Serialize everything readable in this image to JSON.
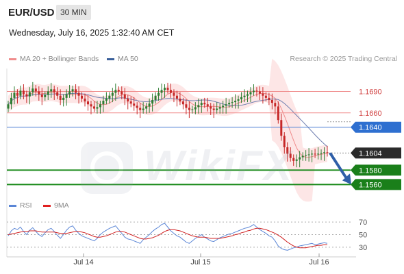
{
  "header": {
    "symbol": "EUR/USD",
    "timeframe": "30 MIN",
    "datetime": "Wednesday, July 16, 2025 1:32:40 AM CET"
  },
  "legend_top": {
    "items": [
      {
        "label": "MA 20 + Bollinger Bands",
        "color": "#f08c8c"
      },
      {
        "label": "MA 50",
        "color": "#3a5f9a"
      }
    ],
    "credit": "Research © 2025 Trading Central"
  },
  "legend_bottom": {
    "items": [
      {
        "label": "RSI",
        "color": "#5b86d6"
      },
      {
        "label": "9MA",
        "color": "#e02020"
      }
    ]
  },
  "watermark": {
    "text": "WikiFX"
  },
  "colors": {
    "candle_up": "#2e7d32",
    "candle_down": "#c62828",
    "bollinger_fill": "#fde2e2",
    "ma20_line": "#f08c8c",
    "ma50_line": "#6f7fb0",
    "resistance": "#f08c8c",
    "pivot": "#4a7fd4",
    "support": "#1a8a1a",
    "current": "#333333",
    "arrow": "#2f5fa8",
    "rsi": "#5b86d6",
    "rsi_ma": "#d02020"
  },
  "chart_data": [
    {
      "type": "candlestick",
      "title": "EUR/USD",
      "x_labels": [
        "Jul 14",
        "Jul 15",
        "Jul 16"
      ],
      "y_range": [
        1.1545,
        1.1722
      ],
      "levels": [
        {
          "label": "1.1690",
          "value": 1.169,
          "kind": "resistance"
        },
        {
          "label": "1.1660",
          "value": 1.166,
          "kind": "resistance"
        },
        {
          "label": "1.1640",
          "value": 1.164,
          "kind": "pivot"
        },
        {
          "label": "1.1604",
          "value": 1.1604,
          "kind": "current"
        },
        {
          "label": "1.1580",
          "value": 1.158,
          "kind": "support"
        },
        {
          "label": "1.1560",
          "value": 1.156,
          "kind": "support"
        }
      ],
      "forecast_arrow": {
        "from": 1.1604,
        "to": 1.156
      },
      "closes": [
        1.1672,
        1.1681,
        1.1688,
        1.1684,
        1.1691,
        1.1686,
        1.1683,
        1.1689,
        1.1694,
        1.169,
        1.1686,
        1.1682,
        1.1685,
        1.169,
        1.1693,
        1.1689,
        1.1684,
        1.1678,
        1.1681,
        1.1686,
        1.169,
        1.1693,
        1.1688,
        1.1684,
        1.168,
        1.1676,
        1.1672,
        1.1669,
        1.1666,
        1.1668,
        1.1672,
        1.1677,
        1.168,
        1.1684,
        1.1688,
        1.1692,
        1.169,
        1.1686,
        1.168,
        1.1676,
        1.1673,
        1.167,
        1.1667,
        1.1664,
        1.1666,
        1.1669,
        1.1673,
        1.1678,
        1.1684,
        1.1688,
        1.1692,
        1.1695,
        1.1692,
        1.1688,
        1.1684,
        1.168,
        1.1676,
        1.1672,
        1.1667,
        1.1664,
        1.1665,
        1.1668,
        1.1671,
        1.1674,
        1.1672,
        1.1669,
        1.1666,
        1.1664,
        1.1666,
        1.1668,
        1.167,
        1.1672,
        1.1674,
        1.1675,
        1.1677,
        1.1679,
        1.1682,
        1.1684,
        1.1686,
        1.1689,
        1.1691,
        1.169,
        1.1687,
        1.1684,
        1.1681,
        1.1678,
        1.1674,
        1.1669,
        1.165,
        1.1628,
        1.1612,
        1.1603,
        1.1597,
        1.1593,
        1.1595,
        1.1598,
        1.16,
        1.1601,
        1.1602,
        1.1603,
        1.1602,
        1.1603,
        1.1604,
        1.1605,
        1.1604
      ]
    },
    {
      "type": "line",
      "title": "RSI",
      "ticks": [
        70,
        50,
        30
      ],
      "y_range": [
        20,
        80
      ],
      "series": [
        {
          "name": "RSI",
          "values": [
            48,
            56,
            60,
            58,
            62,
            55,
            50,
            57,
            61,
            55,
            50,
            47,
            53,
            58,
            60,
            55,
            49,
            44,
            50,
            57,
            62,
            64,
            57,
            52,
            48,
            46,
            44,
            42,
            40,
            44,
            50,
            54,
            57,
            60,
            62,
            64,
            58,
            52,
            46,
            43,
            42,
            40,
            38,
            36,
            42,
            46,
            50,
            55,
            59,
            62,
            66,
            68,
            62,
            56,
            52,
            48,
            46,
            42,
            38,
            36,
            40,
            44,
            47,
            50,
            46,
            43,
            40,
            39,
            42,
            45,
            47,
            49,
            51,
            52,
            54,
            56,
            58,
            60,
            61,
            63,
            66,
            62,
            58,
            55,
            52,
            48,
            46,
            40,
            32,
            28,
            26,
            25,
            27,
            29,
            30,
            32,
            33,
            34,
            35,
            36,
            34,
            35,
            36,
            37,
            36
          ]
        },
        {
          "name": "9MA",
          "values": [
            50,
            51,
            52,
            53,
            54,
            55,
            55,
            56,
            56,
            56,
            55,
            54,
            54,
            54,
            54,
            54,
            53,
            52,
            52,
            52,
            53,
            54,
            55,
            55,
            54,
            53,
            51,
            49,
            47,
            46,
            46,
            47,
            48,
            50,
            52,
            54,
            55,
            55,
            54,
            52,
            50,
            48,
            46,
            44,
            43,
            43,
            44,
            45,
            47,
            49,
            52,
            55,
            57,
            58,
            58,
            57,
            56,
            54,
            52,
            50,
            48,
            47,
            46,
            46,
            46,
            45,
            44,
            44,
            44,
            44,
            45,
            46,
            47,
            48,
            50,
            51,
            53,
            54,
            56,
            57,
            59,
            60,
            60,
            59,
            58,
            56,
            54,
            52,
            49,
            46,
            42,
            38,
            35,
            32,
            30,
            29,
            29,
            29,
            30,
            31,
            32,
            33,
            33,
            34,
            34
          ]
        }
      ]
    }
  ]
}
